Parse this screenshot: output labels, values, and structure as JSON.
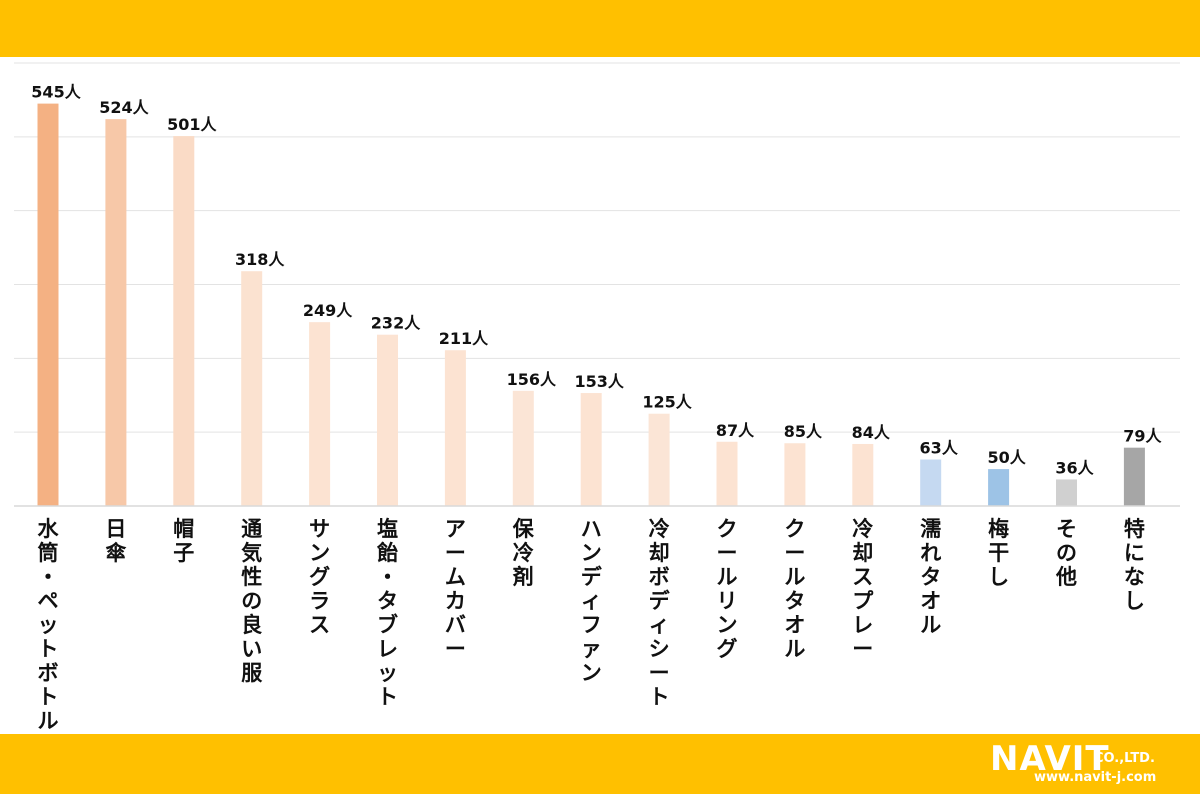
{
  "logo": {
    "name": "NAVIT",
    "company": "CO.,LTD.",
    "url": "www.navit-j.com"
  },
  "chart_data": {
    "type": "bar",
    "ylim": [
      0,
      600
    ],
    "grid": true,
    "unit": "人",
    "categories": [
      "水筒・ペットボトル",
      "日傘",
      "帽子",
      "通気性の良い服",
      "サングラス",
      "塩飴・タブレット",
      "アームカバー",
      "保冷剤",
      "ハンディファン",
      "冷却ボディシート",
      "クールリング",
      "クールタオル",
      "冷却スプレー",
      "濡れタオル",
      "梅干し",
      "その他",
      "特になし"
    ],
    "values": [
      545,
      524,
      501,
      318,
      249,
      232,
      211,
      156,
      153,
      125,
      87,
      85,
      84,
      63,
      50,
      36,
      79
    ],
    "value_labels": [
      "545人",
      "524人",
      "501人",
      "318人",
      "249人",
      "232人",
      "211人",
      "156人",
      "153人",
      "125人",
      "87人",
      "85人",
      "84人",
      "63人",
      "50人",
      "36人",
      "79人"
    ],
    "colors": [
      "#F4B183",
      "#F7C8A8",
      "#FADBC6",
      "#FBE2D0",
      "#FCE3D2",
      "#FCE3D2",
      "#FCE3D2",
      "#FBE5D6",
      "#FCE3D2",
      "#FBE5D6",
      "#FCE3D2",
      "#FCE3D2",
      "#FCE3D2",
      "#C5D9F1",
      "#9DC3E6",
      "#D0D0D0",
      "#A6A6A6"
    ]
  }
}
